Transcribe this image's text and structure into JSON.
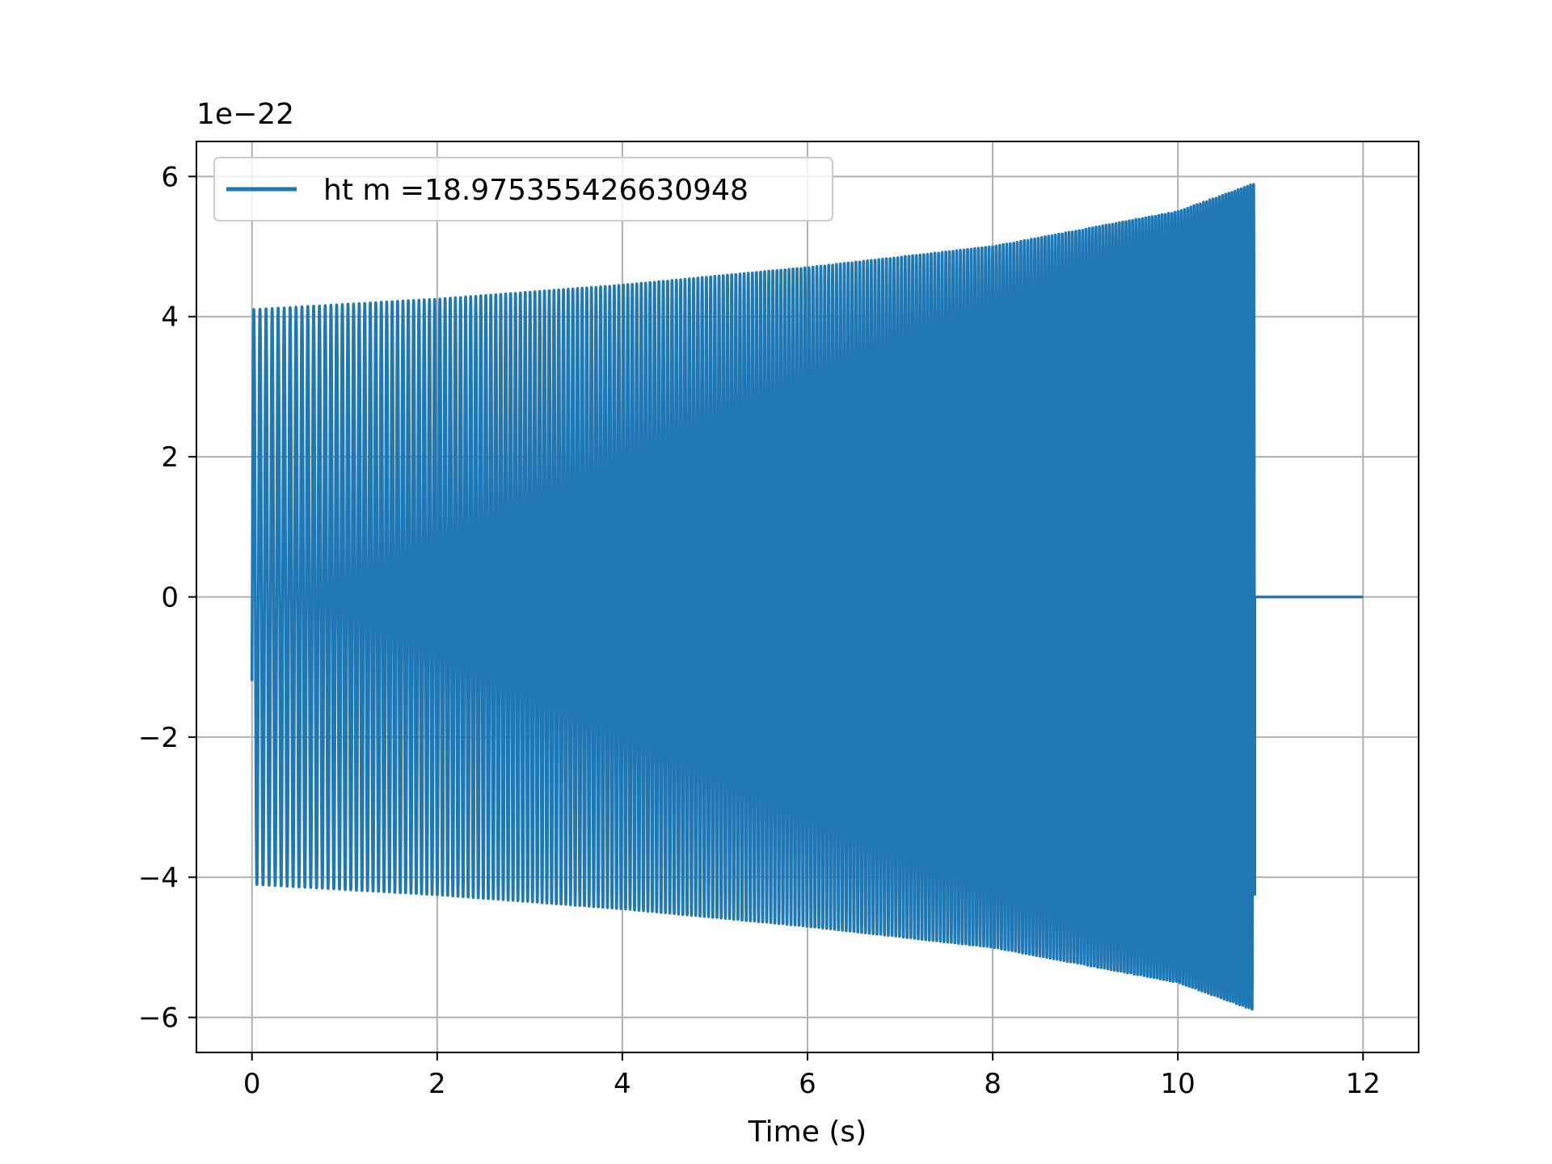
{
  "chart_data": {
    "type": "line",
    "title": "",
    "xlabel": "Time (s)",
    "ylabel": "",
    "y_offset_label": "1e−22",
    "xlim": [
      -0.6,
      12.6
    ],
    "ylim": [
      -6.5,
      6.5
    ],
    "grid": true,
    "legend_position": "upper left",
    "x_ticks": [
      0,
      2,
      4,
      6,
      8,
      10,
      12
    ],
    "x_tick_labels": [
      "0",
      "2",
      "4",
      "6",
      "8",
      "10",
      "12"
    ],
    "y_ticks": [
      -6,
      -4,
      -2,
      0,
      2,
      4,
      6
    ],
    "y_tick_labels": [
      "−6",
      "−4",
      "−2",
      "0",
      "2",
      "4",
      "6"
    ],
    "series": [
      {
        "name": "ht m =18.975355426630948",
        "color": "#1f77b4",
        "description_points": {
          "start_value": -1.2,
          "t_start": 0.0,
          "t_merge": 10.83,
          "t_end": 12.0,
          "amplitude_envelope": [
            [
              0.0,
              4.1
            ],
            [
              2.0,
              4.25
            ],
            [
              4.0,
              4.45
            ],
            [
              6.0,
              4.7
            ],
            [
              8.0,
              5.0
            ],
            [
              10.0,
              5.5
            ],
            [
              10.83,
              5.9
            ]
          ],
          "start_frequency_hz": 15.0,
          "end_frequency_hz": 30.0,
          "post_merge_value": 0
        }
      }
    ]
  },
  "colors": {
    "line": "#1f77b4",
    "grid": "#b0b0b0",
    "axes": "#000000"
  }
}
